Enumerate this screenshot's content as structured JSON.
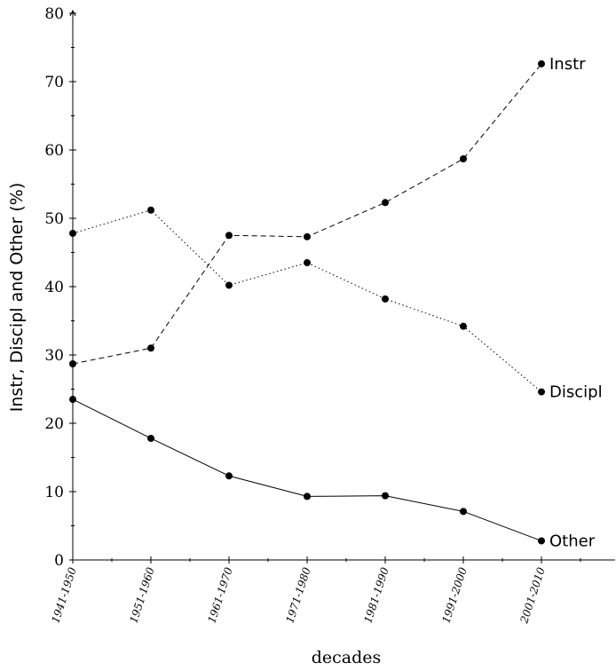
{
  "chart_data": {
    "type": "line",
    "title": "",
    "xlabel": "decades",
    "ylabel": "Instr, Discipl and Other (%)",
    "ylim": [
      0,
      80
    ],
    "yticks": [
      0,
      10,
      20,
      30,
      40,
      50,
      60,
      70,
      80
    ],
    "grid": false,
    "legend": "labels at line ends",
    "categories": [
      "1941-1950",
      "1951-1960",
      "1961-1970",
      "1971-1980",
      "1981-1990",
      "1991-2000",
      "2001-2010"
    ],
    "series": [
      {
        "name": "Instr",
        "style": "dashed",
        "color": "#000000",
        "values": [
          28.7,
          31.0,
          47.5,
          47.3,
          52.3,
          58.7,
          72.6
        ]
      },
      {
        "name": "Discipl",
        "style": "dotted",
        "color": "#000000",
        "values": [
          47.8,
          51.2,
          40.2,
          43.5,
          38.2,
          34.2,
          24.6
        ]
      },
      {
        "name": "Other",
        "style": "solid",
        "color": "#000000",
        "values": [
          23.5,
          17.8,
          12.3,
          9.3,
          9.4,
          7.1,
          2.8
        ]
      }
    ]
  }
}
